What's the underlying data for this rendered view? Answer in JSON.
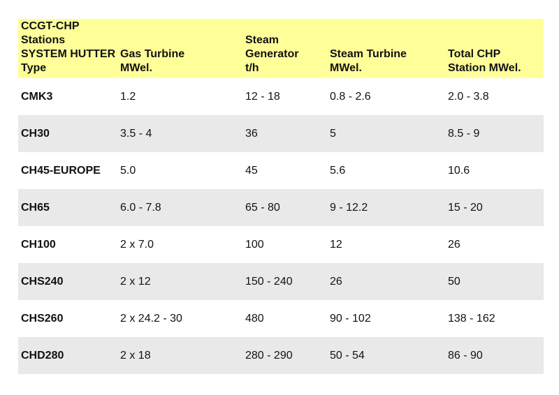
{
  "colors": {
    "header_bg": "#ffff99",
    "stripe_bg": "#e9e9e9"
  },
  "headers": [
    [
      "CCGT-CHP Stations",
      "SYSTEM HUTTER",
      "Type"
    ],
    [
      "Gas Turbine",
      "MWel."
    ],
    [
      "Steam Generator",
      "t/h"
    ],
    [
      "Steam Turbine",
      "MWel."
    ],
    [
      "Total CHP",
      "Station MWel."
    ]
  ],
  "rows": [
    [
      "CMK3",
      "1.2",
      "12 - 18",
      "0.8 - 2.6",
      "2.0 - 3.8"
    ],
    [
      "CH30",
      "3.5 - 4",
      "36",
      "5",
      "8.5 - 9"
    ],
    [
      "CH45-EUROPE",
      "5.0",
      "45",
      "5.6",
      "10.6"
    ],
    [
      "CH65",
      "6.0 - 7.8",
      "65 - 80",
      "9 - 12.2",
      "15 - 20"
    ],
    [
      "CH100",
      "2 x 7.0",
      "100",
      "12",
      "26"
    ],
    [
      "CHS240",
      "2 x 12",
      "150 - 240",
      "26",
      "50"
    ],
    [
      "CHS260",
      "2 x 24.2 - 30",
      "480",
      "90 - 102",
      "138 - 162"
    ],
    [
      "CHD280",
      "2 x 18",
      "280 - 290",
      "50 - 54",
      "86 - 90"
    ]
  ]
}
